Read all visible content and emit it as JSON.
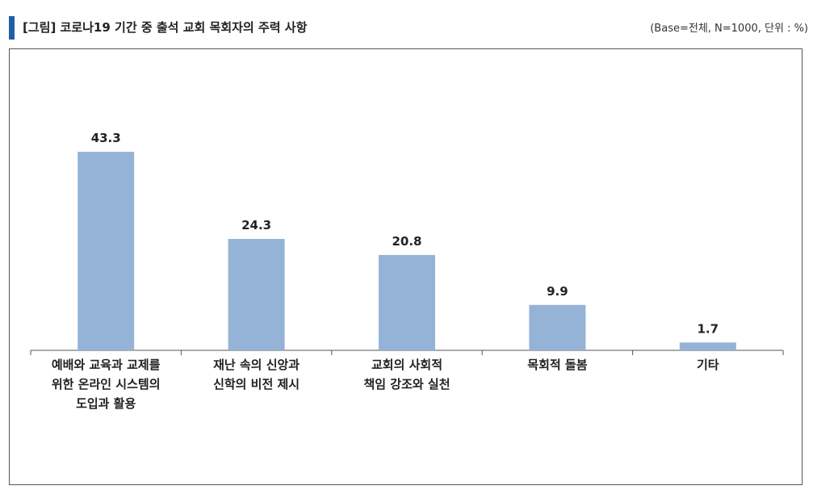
{
  "header": {
    "title": "[그림] 코로나19 기간 중 출석 교회 목회자의 주력 사항",
    "base_note": "(Base=전체, N=1000, 단위 : %)"
  },
  "colors": {
    "accent": "#1f5fa8",
    "bar": "#95b3d7",
    "axis": "#555555"
  },
  "chart_data": {
    "type": "bar",
    "categories": [
      [
        "예배와 교육과 교제를",
        "위한 온라인 시스템의",
        "도입과 활용"
      ],
      [
        "재난 속의 신앙과",
        "신학의 비전 제시"
      ],
      [
        "교회의 사회적",
        "책임 강조와 실천"
      ],
      [
        "목회적 돌봄"
      ],
      [
        "기타"
      ]
    ],
    "values": [
      43.3,
      24.3,
      20.8,
      9.9,
      1.7
    ],
    "data_labels": [
      "43.3",
      "24.3",
      "20.8",
      "9.9",
      "1.7"
    ],
    "ylim": [
      0,
      50
    ],
    "grid": false,
    "legend": "none"
  }
}
